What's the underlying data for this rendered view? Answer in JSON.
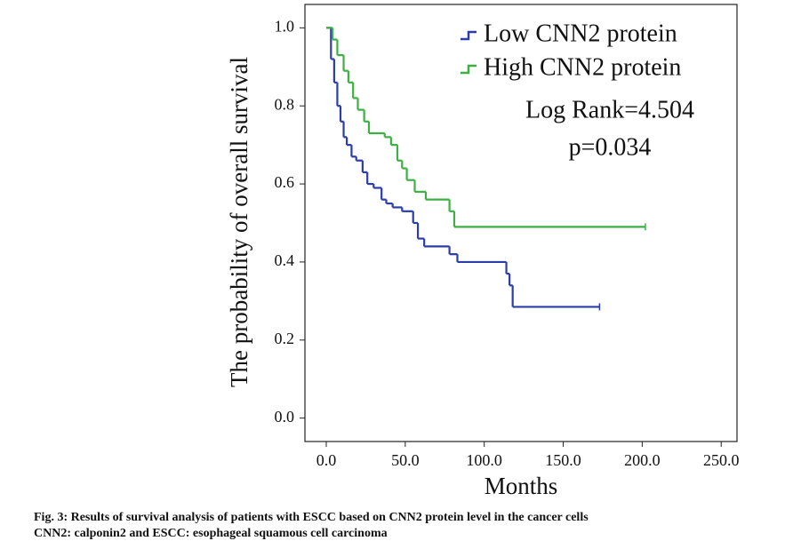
{
  "chart_data": {
    "type": "step",
    "xlabel": "Months",
    "ylabel": "The probability of overall survival",
    "xlim": [
      -13.5,
      260
    ],
    "ylim": [
      -0.06,
      1.06
    ],
    "xticks": [
      {
        "value": 0,
        "label": "0.0"
      },
      {
        "value": 50,
        "label": "50.0"
      },
      {
        "value": 100,
        "label": "100.0"
      },
      {
        "value": 150,
        "label": "150.0"
      },
      {
        "value": 200,
        "label": "200.0"
      },
      {
        "value": 250,
        "label": "250.0"
      }
    ],
    "yticks": [
      {
        "value": 0,
        "label": "0.0"
      },
      0.2,
      0.4,
      0.6,
      0.8,
      {
        "value": 1,
        "label": "1.0"
      }
    ],
    "legend": "upper right",
    "annotations": [
      "Log Rank=4.504",
      "p=0.034"
    ],
    "series": [
      {
        "name": "Low CNN2 protein",
        "color": "#2b3ea8",
        "x": [
          0,
          3,
          5,
          7,
          9,
          11,
          13,
          16,
          19,
          23,
          26,
          30,
          35,
          38,
          42,
          48,
          55,
          58,
          62,
          78,
          83,
          114,
          116,
          118,
          173
        ],
        "values": [
          1.0,
          0.92,
          0.86,
          0.8,
          0.76,
          0.72,
          0.7,
          0.67,
          0.66,
          0.63,
          0.6,
          0.59,
          0.56,
          0.55,
          0.54,
          0.53,
          0.5,
          0.46,
          0.44,
          0.42,
          0.4,
          0.37,
          0.34,
          0.285,
          0.285
        ]
      },
      {
        "name": "High CNN2 protein",
        "color": "#3cb043",
        "x": [
          0,
          4,
          7,
          11,
          14,
          17,
          20,
          24,
          27,
          37,
          41,
          45,
          48,
          51,
          56,
          63,
          78,
          81,
          202
        ],
        "values": [
          1.0,
          0.97,
          0.93,
          0.89,
          0.86,
          0.82,
          0.79,
          0.76,
          0.73,
          0.72,
          0.7,
          0.66,
          0.64,
          0.61,
          0.58,
          0.56,
          0.53,
          0.49,
          0.49
        ]
      }
    ]
  },
  "caption": [
    "Fig. 3: Results of survival analysis of patients with ESCC based on CNN2 protein level in the cancer cells",
    "CNN2: calponin2 and ESCC: esophageal squamous cell carcinoma"
  ]
}
